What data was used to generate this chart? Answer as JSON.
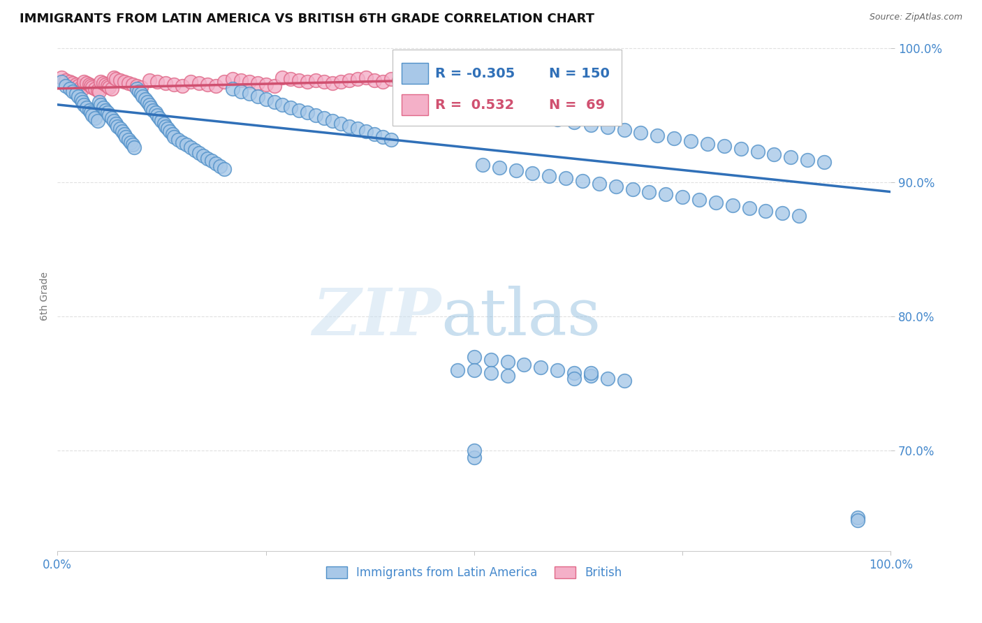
{
  "title": "IMMIGRANTS FROM LATIN AMERICA VS BRITISH 6TH GRADE CORRELATION CHART",
  "source": "Source: ZipAtlas.com",
  "ylabel": "6th Grade",
  "legend_blue_label": "Immigrants from Latin America",
  "legend_pink_label": "British",
  "corr_blue_R": -0.305,
  "corr_blue_N": 150,
  "corr_pink_R": 0.532,
  "corr_pink_N": 69,
  "blue_color": "#a8c8e8",
  "blue_edge_color": "#5090c8",
  "blue_line_color": "#3070b8",
  "pink_color": "#f4b0c8",
  "pink_edge_color": "#e06888",
  "pink_line_color": "#d05070",
  "background": "#ffffff",
  "grid_color": "#cccccc",
  "title_color": "#111111",
  "source_color": "#666666",
  "axis_label_color": "#4488cc",
  "blue_scatter_x": [
    0.005,
    0.01,
    0.015,
    0.018,
    0.022,
    0.025,
    0.028,
    0.03,
    0.032,
    0.035,
    0.038,
    0.04,
    0.042,
    0.045,
    0.048,
    0.05,
    0.052,
    0.055,
    0.058,
    0.06,
    0.062,
    0.065,
    0.068,
    0.07,
    0.072,
    0.075,
    0.078,
    0.08,
    0.082,
    0.085,
    0.088,
    0.09,
    0.092,
    0.095,
    0.098,
    0.1,
    0.102,
    0.105,
    0.108,
    0.11,
    0.112,
    0.115,
    0.118,
    0.12,
    0.122,
    0.125,
    0.128,
    0.13,
    0.132,
    0.135,
    0.138,
    0.14,
    0.145,
    0.15,
    0.155,
    0.16,
    0.165,
    0.17,
    0.175,
    0.18,
    0.185,
    0.19,
    0.195,
    0.2,
    0.21,
    0.22,
    0.23,
    0.24,
    0.25,
    0.26,
    0.27,
    0.28,
    0.29,
    0.3,
    0.31,
    0.32,
    0.33,
    0.34,
    0.35,
    0.36,
    0.37,
    0.38,
    0.39,
    0.4,
    0.42,
    0.44,
    0.46,
    0.48,
    0.5,
    0.52,
    0.54,
    0.56,
    0.58,
    0.6,
    0.62,
    0.64,
    0.66,
    0.68,
    0.7,
    0.72,
    0.74,
    0.76,
    0.78,
    0.8,
    0.82,
    0.84,
    0.86,
    0.88,
    0.9,
    0.92,
    0.51,
    0.53,
    0.55,
    0.57,
    0.59,
    0.61,
    0.63,
    0.65,
    0.67,
    0.69,
    0.71,
    0.73,
    0.75,
    0.77,
    0.79,
    0.81,
    0.83,
    0.85,
    0.87,
    0.89,
    0.5,
    0.52,
    0.54,
    0.56,
    0.58,
    0.6,
    0.62,
    0.64,
    0.66,
    0.68,
    0.5,
    0.52,
    0.54,
    0.48,
    0.96,
    0.62,
    0.5,
    0.5,
    0.64,
    0.96
  ],
  "blue_scatter_y": [
    0.975,
    0.972,
    0.97,
    0.968,
    0.966,
    0.964,
    0.962,
    0.96,
    0.958,
    0.956,
    0.954,
    0.952,
    0.95,
    0.948,
    0.946,
    0.96,
    0.958,
    0.956,
    0.954,
    0.952,
    0.95,
    0.948,
    0.946,
    0.944,
    0.942,
    0.94,
    0.938,
    0.936,
    0.934,
    0.932,
    0.93,
    0.928,
    0.926,
    0.97,
    0.968,
    0.966,
    0.964,
    0.962,
    0.96,
    0.958,
    0.956,
    0.954,
    0.952,
    0.95,
    0.948,
    0.946,
    0.944,
    0.942,
    0.94,
    0.938,
    0.936,
    0.934,
    0.932,
    0.93,
    0.928,
    0.926,
    0.924,
    0.922,
    0.92,
    0.918,
    0.916,
    0.914,
    0.912,
    0.91,
    0.97,
    0.968,
    0.966,
    0.964,
    0.962,
    0.96,
    0.958,
    0.956,
    0.954,
    0.952,
    0.95,
    0.948,
    0.946,
    0.944,
    0.942,
    0.94,
    0.938,
    0.936,
    0.934,
    0.932,
    0.965,
    0.963,
    0.961,
    0.959,
    0.957,
    0.955,
    0.953,
    0.951,
    0.949,
    0.947,
    0.945,
    0.943,
    0.941,
    0.939,
    0.937,
    0.935,
    0.933,
    0.931,
    0.929,
    0.927,
    0.925,
    0.923,
    0.921,
    0.919,
    0.917,
    0.915,
    0.913,
    0.911,
    0.909,
    0.907,
    0.905,
    0.903,
    0.901,
    0.899,
    0.897,
    0.895,
    0.893,
    0.891,
    0.889,
    0.887,
    0.885,
    0.883,
    0.881,
    0.879,
    0.877,
    0.875,
    0.77,
    0.768,
    0.766,
    0.764,
    0.762,
    0.76,
    0.758,
    0.756,
    0.754,
    0.752,
    0.76,
    0.758,
    0.756,
    0.76,
    0.65,
    0.754,
    0.695,
    0.7,
    0.758,
    0.648
  ],
  "pink_scatter_x": [
    0.005,
    0.01,
    0.015,
    0.018,
    0.022,
    0.025,
    0.028,
    0.03,
    0.032,
    0.035,
    0.038,
    0.04,
    0.042,
    0.045,
    0.048,
    0.05,
    0.052,
    0.055,
    0.058,
    0.06,
    0.062,
    0.065,
    0.068,
    0.07,
    0.075,
    0.08,
    0.085,
    0.09,
    0.095,
    0.1,
    0.11,
    0.12,
    0.13,
    0.14,
    0.15,
    0.16,
    0.17,
    0.18,
    0.19,
    0.2,
    0.21,
    0.22,
    0.23,
    0.24,
    0.25,
    0.26,
    0.27,
    0.28,
    0.29,
    0.3,
    0.31,
    0.32,
    0.33,
    0.34,
    0.35,
    0.36,
    0.37,
    0.38,
    0.39,
    0.4,
    0.41,
    0.42,
    0.43,
    0.44,
    0.45,
    0.46,
    0.47,
    0.48,
    0.49
  ],
  "pink_scatter_y": [
    0.978,
    0.976,
    0.975,
    0.974,
    0.973,
    0.972,
    0.971,
    0.97,
    0.975,
    0.974,
    0.973,
    0.972,
    0.971,
    0.97,
    0.969,
    0.968,
    0.975,
    0.974,
    0.973,
    0.972,
    0.971,
    0.97,
    0.978,
    0.977,
    0.976,
    0.975,
    0.974,
    0.973,
    0.972,
    0.971,
    0.976,
    0.975,
    0.974,
    0.973,
    0.972,
    0.975,
    0.974,
    0.973,
    0.972,
    0.975,
    0.977,
    0.976,
    0.975,
    0.974,
    0.973,
    0.972,
    0.978,
    0.977,
    0.976,
    0.975,
    0.976,
    0.975,
    0.974,
    0.975,
    0.976,
    0.977,
    0.978,
    0.976,
    0.975,
    0.977,
    0.976,
    0.975,
    0.976,
    0.977,
    0.978,
    0.976,
    0.977,
    0.978,
    0.976
  ],
  "blue_trend_x": [
    0.0,
    1.0
  ],
  "blue_trend_y": [
    0.958,
    0.893
  ],
  "pink_trend_x": [
    0.0,
    0.5
  ],
  "pink_trend_y": [
    0.97,
    0.977
  ],
  "xlim": [
    0.0,
    1.0
  ],
  "ylim": [
    0.625,
    1.005
  ],
  "yticks": [
    1.0,
    0.9,
    0.8,
    0.7
  ],
  "ytick_labels": [
    "100.0%",
    "90.0%",
    "80.0%",
    "70.0%"
  ],
  "xtick_labels_left": "0.0%",
  "xtick_labels_right": "100.0%"
}
